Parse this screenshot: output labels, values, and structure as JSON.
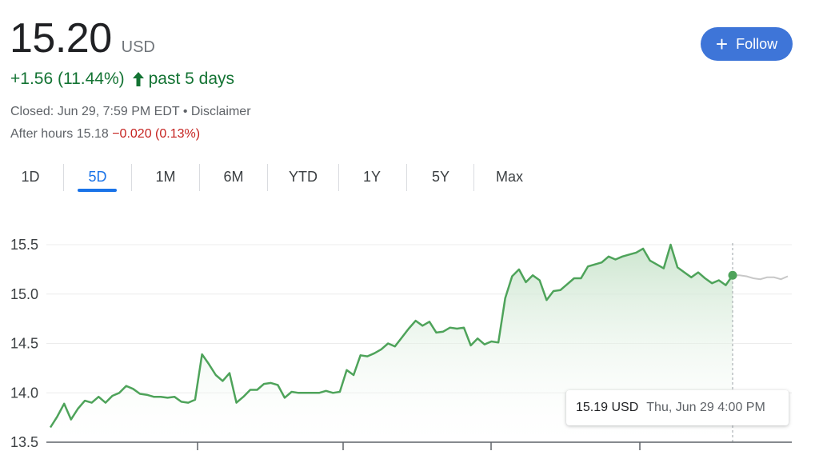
{
  "quote": {
    "price": "15.20",
    "currency": "USD",
    "change": "+1.56 (11.44%)",
    "change_period": "past 5 days",
    "closed_text": "Closed: Jun 29, 7:59 PM EDT • Disclaimer",
    "after_hours_label": "After hours 15.18",
    "after_hours_change": "−0.020 (0.13%)"
  },
  "follow_button": {
    "label": "Follow"
  },
  "tabs": [
    {
      "label": "1D"
    },
    {
      "label": "5D"
    },
    {
      "label": "1M"
    },
    {
      "label": "6M"
    },
    {
      "label": "YTD"
    },
    {
      "label": "1Y"
    },
    {
      "label": "5Y"
    },
    {
      "label": "Max"
    }
  ],
  "active_tab": "5D",
  "colors": {
    "line": "#4ea35a",
    "after_hours_line": "#c8c8c8",
    "fill_top": "#c7e3ca",
    "grid": "#ececec",
    "positive": "#137333",
    "negative": "#c5221f",
    "accent": "#1a73e8"
  },
  "tooltip": {
    "value": "15.19 USD",
    "time": "Thu, Jun 29 4:00 PM"
  },
  "chart_data": {
    "type": "area",
    "ylim": [
      13.5,
      15.5
    ],
    "yticks": [
      "13.5",
      "14.0",
      "14.5",
      "15.0",
      "15.5"
    ],
    "grid": true,
    "x_index": [
      0,
      1,
      2,
      3,
      4,
      5,
      6,
      7,
      8,
      9,
      10,
      11,
      12,
      13,
      14,
      15,
      16,
      17,
      18,
      19,
      20,
      21,
      22,
      23,
      24,
      25,
      26,
      27,
      28,
      29,
      30,
      31,
      32,
      33,
      34,
      35,
      36,
      37,
      38,
      39,
      40,
      41,
      42,
      43,
      44,
      45,
      46,
      47,
      48,
      49,
      50,
      51,
      52,
      53,
      54,
      55,
      56,
      57,
      58,
      59,
      60,
      61,
      62,
      63,
      64,
      65,
      66,
      67,
      68,
      69,
      70,
      71,
      72,
      73,
      74,
      75,
      76,
      77,
      78,
      79,
      80,
      81,
      82,
      83,
      84,
      85,
      86,
      87,
      88,
      89,
      90,
      91,
      92,
      93,
      94,
      95,
      96,
      97,
      98,
      99
    ],
    "values": [
      13.65,
      13.76,
      13.89,
      13.73,
      13.84,
      13.92,
      13.9,
      13.96,
      13.9,
      13.97,
      14.0,
      14.07,
      14.04,
      13.99,
      13.98,
      13.96,
      13.96,
      13.95,
      13.96,
      13.91,
      13.9,
      13.93,
      14.39,
      14.29,
      14.18,
      14.12,
      14.2,
      13.9,
      13.96,
      14.03,
      14.03,
      14.09,
      14.1,
      14.08,
      13.95,
      14.01,
      14.0,
      14.0,
      14.0,
      14.0,
      14.02,
      14.0,
      14.01,
      14.23,
      14.18,
      14.38,
      14.37,
      14.4,
      14.44,
      14.5,
      14.47,
      14.56,
      14.65,
      14.73,
      14.68,
      14.72,
      14.61,
      14.62,
      14.66,
      14.65,
      14.66,
      14.48,
      14.55,
      14.49,
      14.52,
      14.51,
      14.96,
      15.18,
      15.25,
      15.12,
      15.19,
      15.14,
      14.94,
      15.03,
      15.04,
      15.1,
      15.16,
      15.16,
      15.28,
      15.3,
      15.32,
      15.38,
      15.35,
      15.38,
      15.4,
      15.42,
      15.46,
      15.34,
      15.3,
      15.26,
      15.5,
      15.27,
      15.22,
      15.17,
      15.22,
      15.16,
      15.11,
      15.14,
      15.09,
      15.19
    ],
    "after_hours_values": [
      15.19,
      15.19,
      15.18,
      15.16,
      15.15,
      15.17,
      15.17,
      15.15,
      15.18
    ],
    "marker": {
      "index": 99,
      "value": 15.19
    }
  }
}
